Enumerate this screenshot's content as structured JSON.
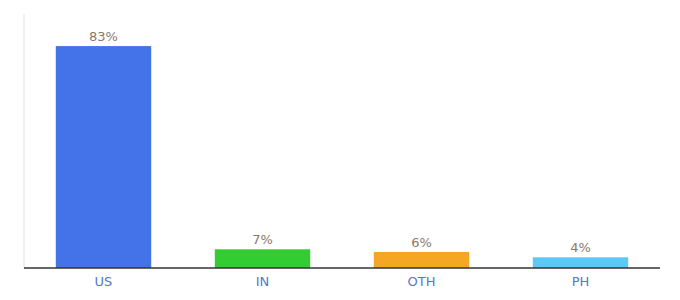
{
  "chart_data": {
    "type": "bar",
    "categories": [
      "US",
      "IN",
      "OTH",
      "PH"
    ],
    "values": [
      83,
      7,
      6,
      4
    ],
    "value_labels": [
      "83%",
      "7%",
      "6%",
      "4%"
    ],
    "colors": [
      "#4472e8",
      "#33cc33",
      "#f5a623",
      "#5bc8f5"
    ],
    "ylim": [
      0,
      95
    ],
    "data_labels": true,
    "tick_labels": "x",
    "grid": false
  }
}
